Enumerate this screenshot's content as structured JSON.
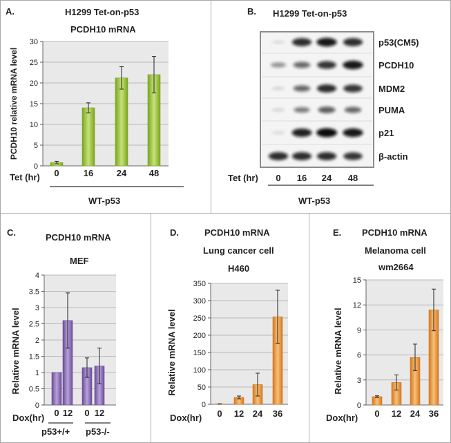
{
  "panels": {
    "A": {
      "letter": "A.",
      "title1": "H1299  Tet-on-p53",
      "title2": "PCDH10 mRNA",
      "ylabel": "PCDH10 relative mRNA level",
      "xprefix": "Tet (hr)",
      "group_label": "WT-p53",
      "colors": {
        "bar_dark": "#7aa51f",
        "bar_light": "#c7e27a"
      }
    },
    "B": {
      "letter": "B.",
      "title": "H1299   Tet-on-p53",
      "xprefix": "Tet (hr)",
      "lanes": [
        "0",
        "16",
        "24",
        "48"
      ],
      "group_label": "WT-p53",
      "blot_rows": [
        {
          "label": "p53(CM5)",
          "intensity": [
            0.03,
            0.85,
            0.95,
            0.85
          ]
        },
        {
          "label": "PCDH10",
          "intensity": [
            0.35,
            0.55,
            0.8,
            0.95
          ]
        },
        {
          "label": "MDM2",
          "intensity": [
            0.05,
            0.55,
            0.85,
            0.8
          ]
        },
        {
          "label": "PUMA",
          "intensity": [
            0.05,
            0.45,
            0.6,
            0.55
          ]
        },
        {
          "label": "p21",
          "intensity": [
            0.03,
            0.9,
            1.0,
            0.95
          ]
        },
        {
          "label": "β-actin",
          "intensity": [
            0.85,
            0.85,
            0.85,
            0.8
          ]
        }
      ]
    },
    "C": {
      "letter": "C.",
      "title1": "PCDH10 mRNA",
      "title2": "MEF",
      "ylabel": "Relative mRNA level",
      "xprefix": "Dox(hr)",
      "group_labels": [
        "p53+/+",
        "p53-/-"
      ],
      "colors": {
        "bar_dark": "#6b4b9a",
        "bar_light": "#b7a2d8"
      }
    },
    "D": {
      "letter": "D.",
      "title1": "PCDH10 mRNA",
      "title2": "Lung cancer cell",
      "title3": "H460",
      "ylabel": "Relative mRNA level",
      "xprefix": "Dox(hr)",
      "colors": {
        "bar_dark": "#d8761d",
        "bar_light": "#f5c17a"
      }
    },
    "E": {
      "letter": "E.",
      "title1": "PCDH10 mRNA",
      "title2": "Melanoma cell",
      "title3": "wm2664",
      "ylabel": "Relative mRNA level",
      "xprefix": "Dox(hr)",
      "colors": {
        "bar_dark": "#d8761d",
        "bar_light": "#f5c17a"
      }
    }
  },
  "chart_data": [
    {
      "id": "A",
      "type": "bar",
      "categories": [
        "0",
        "16",
        "24",
        "48"
      ],
      "values": [
        0.8,
        14,
        21.2,
        22
      ],
      "errors": [
        0.3,
        1.2,
        2.7,
        4.4
      ],
      "ylim": [
        0,
        30
      ],
      "yticks": [
        0,
        5,
        10,
        15,
        20,
        25,
        30
      ],
      "grid": true
    },
    {
      "id": "C",
      "type": "bar",
      "categories": [
        "0",
        "12",
        "0",
        "12"
      ],
      "values": [
        1.0,
        2.6,
        1.15,
        1.2
      ],
      "errors": [
        0.0,
        0.85,
        0.3,
        0.55
      ],
      "ylim": [
        0,
        4
      ],
      "yticks": [
        0,
        0.5,
        1,
        1.5,
        2,
        2.5,
        3,
        3.5,
        4
      ],
      "grid": true
    },
    {
      "id": "D",
      "type": "bar",
      "categories": [
        "0",
        "12",
        "24",
        "36"
      ],
      "values": [
        1,
        20,
        57,
        253
      ],
      "errors": [
        0.5,
        4,
        33,
        77
      ],
      "ylim": [
        0,
        350
      ],
      "yticks": [
        0,
        50,
        100,
        150,
        200,
        250,
        300,
        350
      ],
      "grid": true
    },
    {
      "id": "E",
      "type": "bar",
      "categories": [
        "0",
        "12",
        "24",
        "36"
      ],
      "values": [
        1.0,
        2.7,
        5.7,
        11.4
      ],
      "errors": [
        0.1,
        0.9,
        1.6,
        2.5
      ],
      "ylim": [
        0,
        15
      ],
      "yticks": [
        0,
        3,
        6,
        9,
        12,
        15
      ],
      "grid": true
    }
  ]
}
